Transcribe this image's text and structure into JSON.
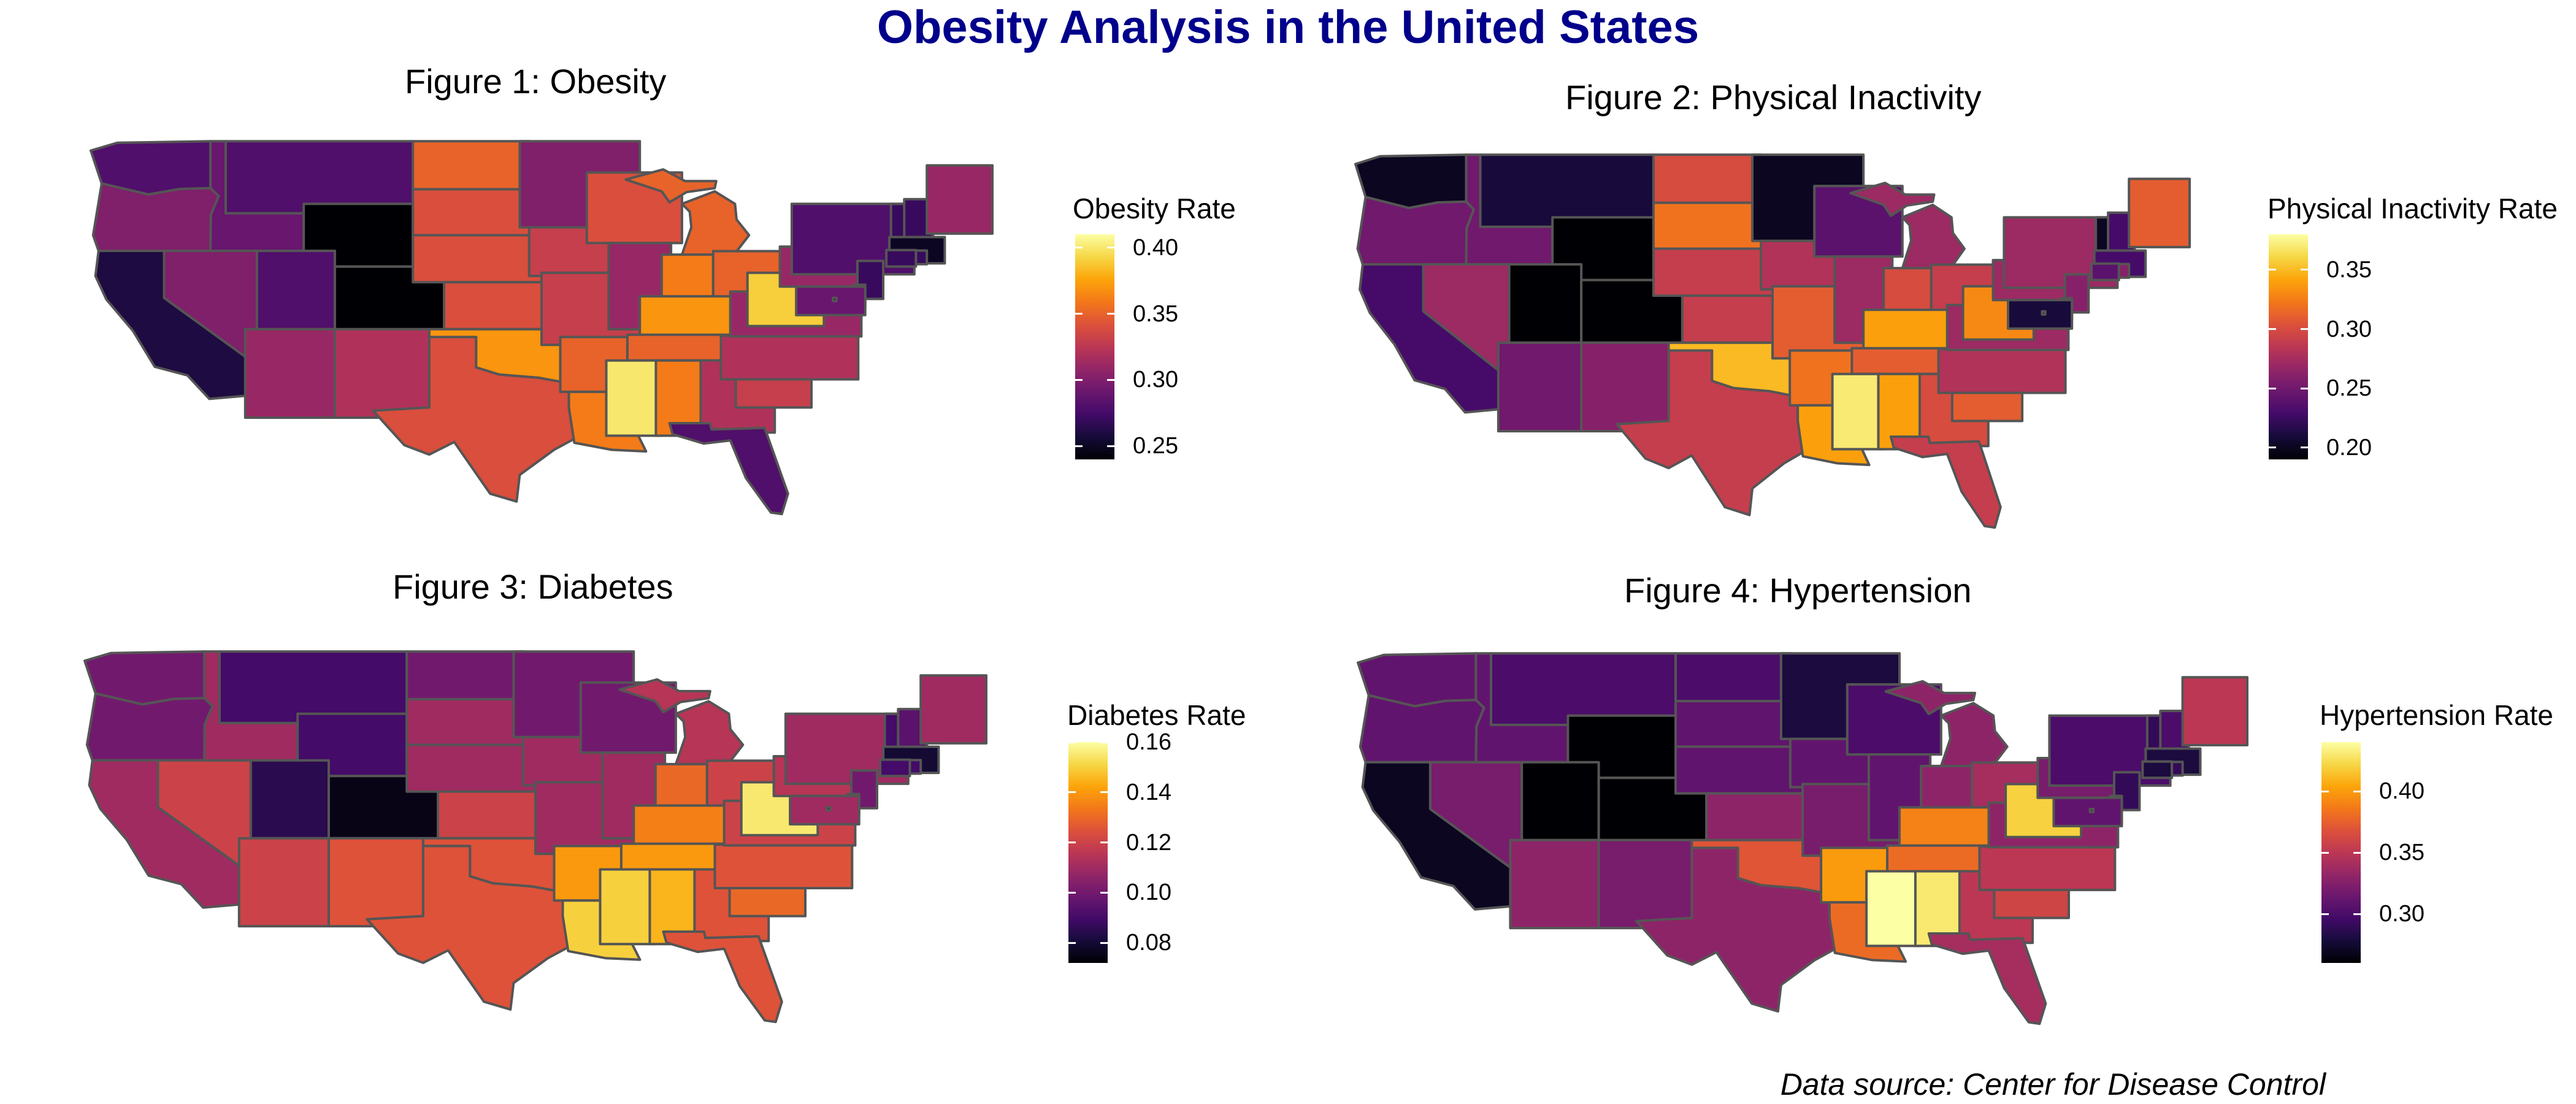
{
  "title": "Obesity Analysis in the United States",
  "title_color": "#00008B",
  "caption": "Data source: Center for Disease Control",
  "colormap": "inferno",
  "border_color": "#555555",
  "chart_data": [
    {
      "type": "choropleth",
      "title": "Figure 1: Obesity",
      "legend": {
        "title": "Obesity Rate",
        "ticks": [
          "0.25",
          "0.30",
          "0.35",
          "0.40"
        ],
        "tick_values": [
          0.25,
          0.3,
          0.35,
          0.4
        ],
        "range": [
          0.24,
          0.41
        ]
      },
      "values": {
        "WA": 0.28,
        "OR": 0.3,
        "CA": 0.26,
        "NV": 0.3,
        "ID": 0.29,
        "MT": 0.28,
        "WY": 0.24,
        "UT": 0.28,
        "CO": 0.24,
        "AZ": 0.31,
        "NM": 0.32,
        "ND": 0.35,
        "SD": 0.34,
        "NE": 0.34,
        "KS": 0.34,
        "OK": 0.37,
        "TX": 0.34,
        "MN": 0.3,
        "IA": 0.33,
        "MO": 0.33,
        "AR": 0.35,
        "LA": 0.36,
        "WI": 0.34,
        "IL": 0.31,
        "MI": 0.35,
        "IN": 0.36,
        "OH": 0.35,
        "KY": 0.37,
        "TN": 0.35,
        "MS": 0.4,
        "AL": 0.36,
        "GA": 0.32,
        "FL": 0.28,
        "SC": 0.33,
        "NC": 0.32,
        "VA": 0.31,
        "WV": 0.39,
        "PA": 0.31,
        "NY": 0.28,
        "VT": 0.27,
        "NH": 0.27,
        "ME": 0.31,
        "MA": 0.25,
        "RI": 0.27,
        "CT": 0.27,
        "NJ": 0.27,
        "DE": 0.3,
        "MD": 0.29,
        "DC": 0.24
      }
    },
    {
      "type": "choropleth",
      "title": "Figure 2: Physical Inactivity",
      "legend": {
        "title": "Physical Inactivity Rate",
        "ticks": [
          "0.20",
          "0.25",
          "0.30",
          "0.35"
        ],
        "tick_values": [
          0.2,
          0.25,
          0.3,
          0.35
        ],
        "range": [
          0.19,
          0.38
        ]
      },
      "values": {
        "WA": 0.2,
        "OR": 0.25,
        "CA": 0.23,
        "NV": 0.27,
        "ID": 0.25,
        "MT": 0.21,
        "WY": 0.19,
        "UT": 0.19,
        "CO": 0.19,
        "AZ": 0.25,
        "NM": 0.26,
        "ND": 0.3,
        "SD": 0.32,
        "NE": 0.29,
        "KS": 0.29,
        "OK": 0.35,
        "TX": 0.29,
        "MN": 0.2,
        "IA": 0.28,
        "MO": 0.31,
        "AR": 0.32,
        "LA": 0.34,
        "WI": 0.24,
        "IL": 0.27,
        "MI": 0.27,
        "IN": 0.3,
        "OH": 0.29,
        "KY": 0.34,
        "TN": 0.31,
        "MS": 0.37,
        "AL": 0.34,
        "GA": 0.3,
        "FL": 0.29,
        "SC": 0.31,
        "NC": 0.28,
        "VA": 0.27,
        "WV": 0.33,
        "PA": 0.27,
        "NY": 0.27,
        "VT": 0.2,
        "NH": 0.23,
        "ME": 0.31,
        "MA": 0.23,
        "RI": 0.26,
        "CT": 0.24,
        "NJ": 0.26,
        "DE": 0.27,
        "MD": 0.21,
        "DC": 0.2
      }
    },
    {
      "type": "choropleth",
      "title": "Figure 3: Diabetes",
      "legend": {
        "title": "Diabetes Rate",
        "ticks": [
          "0.08",
          "0.10",
          "0.12",
          "0.14",
          "0.16"
        ],
        "tick_values": [
          0.08,
          0.1,
          0.12,
          0.14,
          0.16
        ],
        "range": [
          0.072,
          0.16
        ]
      },
      "values": {
        "WA": 0.1,
        "OR": 0.1,
        "CA": 0.11,
        "NV": 0.12,
        "ID": 0.11,
        "MT": 0.09,
        "WY": 0.09,
        "UT": 0.085,
        "CO": 0.075,
        "AZ": 0.12,
        "NM": 0.125,
        "ND": 0.1,
        "SD": 0.11,
        "NE": 0.11,
        "KS": 0.12,
        "OK": 0.125,
        "TX": 0.125,
        "MN": 0.1,
        "IA": 0.11,
        "MO": 0.11,
        "AR": 0.14,
        "LA": 0.15,
        "WI": 0.1,
        "IL": 0.11,
        "MI": 0.115,
        "IN": 0.13,
        "OH": 0.12,
        "KY": 0.135,
        "TN": 0.14,
        "MS": 0.15,
        "AL": 0.145,
        "GA": 0.125,
        "FL": 0.125,
        "SC": 0.13,
        "NC": 0.125,
        "VA": 0.12,
        "WV": 0.155,
        "PA": 0.115,
        "NY": 0.11,
        "VT": 0.09,
        "NH": 0.095,
        "ME": 0.11,
        "MA": 0.08,
        "RI": 0.09,
        "CT": 0.09,
        "NJ": 0.1,
        "DE": 0.11,
        "MD": 0.11,
        "DC": 0.08
      }
    },
    {
      "type": "choropleth",
      "title": "Figure 4: Hypertension",
      "legend": {
        "title": "Hypertension Rate",
        "ticks": [
          "0.30",
          "0.35",
          "0.40"
        ],
        "tick_values": [
          0.3,
          0.35,
          0.4
        ],
        "range": [
          0.26,
          0.44
        ]
      },
      "values": {
        "WA": 0.31,
        "OR": 0.31,
        "CA": 0.27,
        "NV": 0.32,
        "ID": 0.31,
        "MT": 0.3,
        "WY": 0.26,
        "UT": 0.26,
        "CO": 0.26,
        "AZ": 0.33,
        "NM": 0.32,
        "ND": 0.3,
        "SD": 0.31,
        "NE": 0.31,
        "KS": 0.33,
        "OK": 0.37,
        "TX": 0.33,
        "MN": 0.28,
        "IA": 0.31,
        "MO": 0.32,
        "AR": 0.4,
        "LA": 0.38,
        "WI": 0.3,
        "IL": 0.31,
        "MI": 0.33,
        "IN": 0.33,
        "OH": 0.34,
        "KY": 0.39,
        "TN": 0.38,
        "MS": 0.44,
        "AL": 0.43,
        "GA": 0.35,
        "FL": 0.34,
        "SC": 0.36,
        "NC": 0.35,
        "VA": 0.33,
        "WV": 0.42,
        "PA": 0.32,
        "NY": 0.3,
        "VT": 0.29,
        "NH": 0.3,
        "ME": 0.35,
        "MA": 0.28,
        "RI": 0.29,
        "CT": 0.28,
        "NJ": 0.29,
        "DE": 0.31,
        "MD": 0.31,
        "DC": 0.27
      }
    }
  ]
}
